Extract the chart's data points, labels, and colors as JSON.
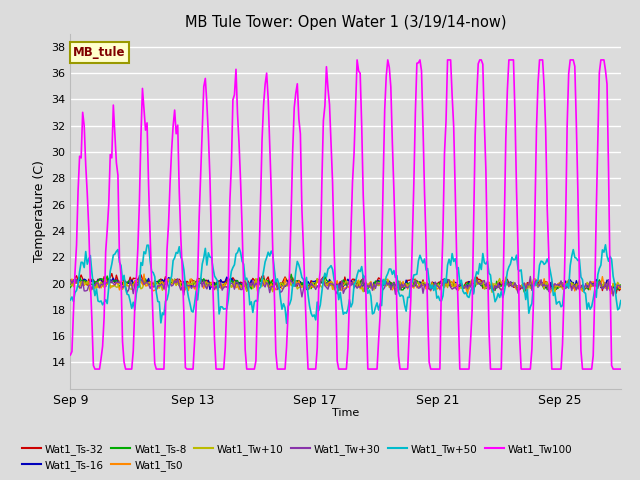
{
  "title": "MB Tule Tower: Open Water 1 (3/19/14-now)",
  "xlabel": "Time",
  "ylabel": "Temperature (C)",
  "ylim": [
    12,
    39
  ],
  "yticks": [
    14,
    16,
    18,
    20,
    22,
    24,
    26,
    28,
    30,
    32,
    34,
    36,
    38
  ],
  "background_color": "#dcdcdc",
  "plot_bg_color": "#dcdcdc",
  "box_label": "MB_tule",
  "box_color": "#ffffcc",
  "box_border_color": "#999900",
  "box_text_color": "#800000",
  "series": [
    {
      "label": "Wat1_Ts-32",
      "color": "#cc0000"
    },
    {
      "label": "Wat1_Ts-16",
      "color": "#0000bb"
    },
    {
      "label": "Wat1_Ts-8",
      "color": "#00aa00"
    },
    {
      "label": "Wat1_Ts0",
      "color": "#ff8800"
    },
    {
      "label": "Wat1_Tw+10",
      "color": "#bbbb00"
    },
    {
      "label": "Wat1_Tw+30",
      "color": "#8833aa"
    },
    {
      "label": "Wat1_Tw+50",
      "color": "#00bbcc"
    },
    {
      "label": "Wat1_Tw100",
      "color": "#ff00ff"
    }
  ],
  "x_ticks_labels": [
    "Sep 9",
    "Sep 13",
    "Sep 17",
    "Sep 21",
    "Sep 25"
  ],
  "x_ticks_pos": [
    0,
    4,
    8,
    12,
    16
  ]
}
